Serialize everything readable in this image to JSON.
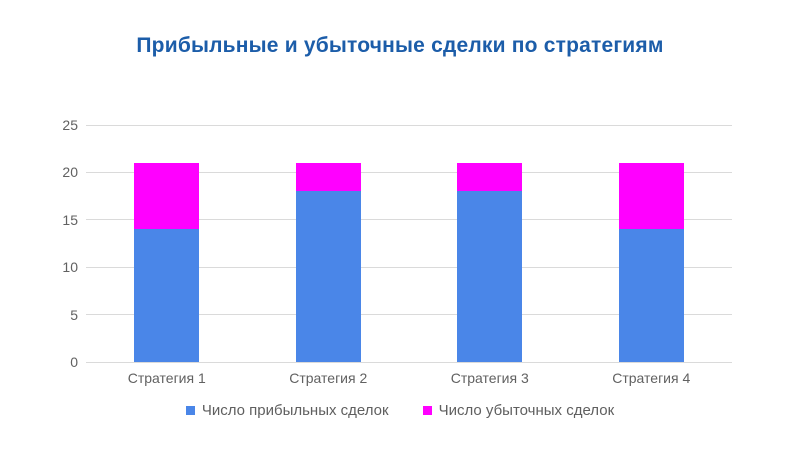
{
  "title": "Прибыльные и убыточные сделки по стратегиям",
  "colors": {
    "background": "#FFFFFF",
    "title_text": "#1C5DA9",
    "profit_series": "#4A86E8",
    "loss_series": "#FF00FF",
    "axis_text": "#616161",
    "gridline": "#DADADA"
  },
  "chart_data": {
    "type": "bar",
    "stacked": true,
    "title": "Прибыльные и убыточные сделки по стратегиям",
    "categories": [
      "Стратегия 1",
      "Стратегия 2",
      "Стратегия 3",
      "Стратегия 4"
    ],
    "series": [
      {
        "name": "Число прибыльных сделок",
        "color": "#4A86E8",
        "values": [
          14,
          18,
          18,
          14
        ]
      },
      {
        "name": "Число убыточных сделок",
        "color": "#FF00FF",
        "values": [
          7,
          3,
          3,
          7
        ]
      }
    ],
    "totals": [
      21,
      21,
      21,
      21
    ],
    "xlabel": "",
    "ylabel": "",
    "ylim": [
      0,
      25
    ],
    "yticks": [
      0,
      5,
      10,
      15,
      20,
      25
    ],
    "grid": true,
    "legend_position": "bottom"
  },
  "legend": {
    "items": [
      {
        "label": "Число прибыльных сделок",
        "color": "#4A86E8"
      },
      {
        "label": "Число убыточных сделок",
        "color": "#FF00FF"
      }
    ]
  }
}
